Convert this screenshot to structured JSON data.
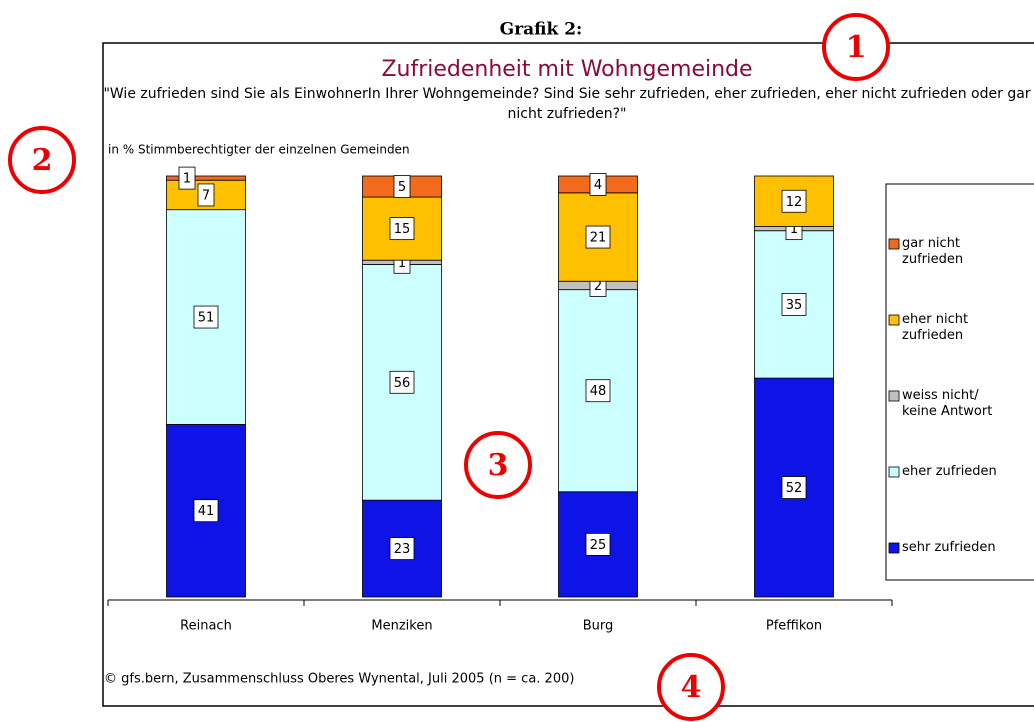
{
  "chart_data": {
    "type": "stacked_bar",
    "header": "Grafik 2:",
    "title": "Zufriedenheit mit Wohngemeinde",
    "subtitle": "\"Wie zufrieden sind Sie als EinwohnerIn Ihrer Wohngemeinde? Sind Sie sehr zufrieden, eher zufrieden, eher nicht zufrieden oder gar nicht zufrieden?\"",
    "axis_note": "in % Stimmberechtigter der einzelnen Gemeinden",
    "source": "© gfs.bern, Zusammenschluss Oberes Wynental, Juli 2005 (n = ca. 200)",
    "markers": [
      "1",
      "2",
      "3",
      "4"
    ],
    "categories": [
      "Reinach",
      "Menziken",
      "Burg",
      "Pfeffikon"
    ],
    "ylim": [
      0,
      100
    ],
    "series": [
      {
        "name": "sehr zufrieden",
        "color": "#0f14e6",
        "values": [
          41,
          23,
          25,
          52
        ]
      },
      {
        "name": "eher zufrieden",
        "color": "#ccffff",
        "values": [
          51,
          56,
          48,
          35
        ]
      },
      {
        "name": "weiss nicht/ keine Antwort",
        "color": "#c0c0c0",
        "values": [
          null,
          1,
          2,
          1
        ]
      },
      {
        "name": "eher nicht zufrieden",
        "color": "#ffc000",
        "values": [
          7,
          15,
          21,
          12
        ]
      },
      {
        "name": "gar nicht zufrieden",
        "color": "#f26b1d",
        "values": [
          1,
          5,
          4,
          null
        ]
      }
    ],
    "legend": "right"
  }
}
